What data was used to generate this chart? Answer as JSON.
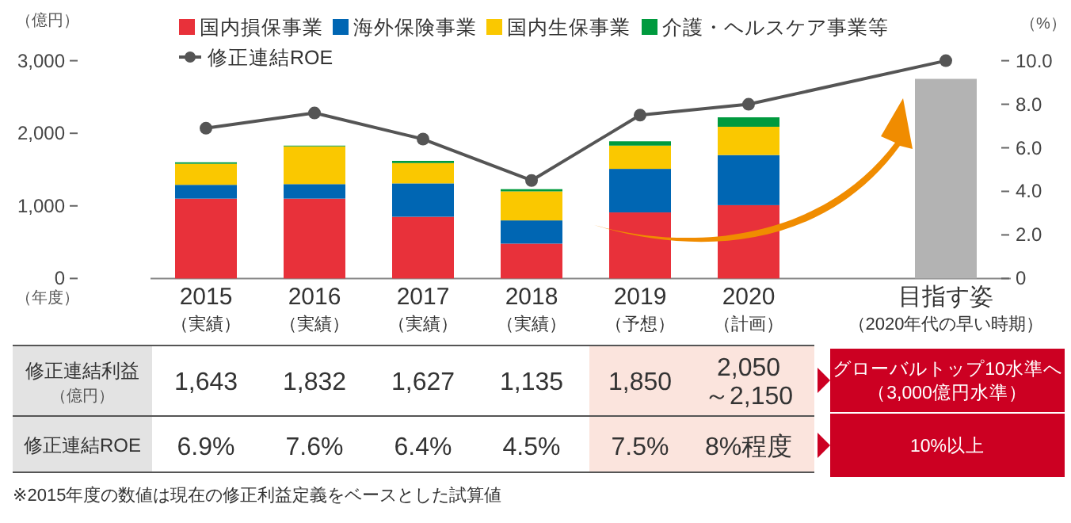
{
  "chart_data": {
    "type": "bar",
    "stacked": true,
    "categories": [
      "2015\n（実績）",
      "2016\n（実績）",
      "2017\n（実績）",
      "2018\n（実績）",
      "2019\n（予想）",
      "2020\n（計画）",
      "目指す姿（2020年代の早い時期）"
    ],
    "series": [
      {
        "name": "国内損保事業",
        "color": "#e8313a",
        "values": [
          1100,
          1100,
          850,
          480,
          910,
          1010,
          null
        ]
      },
      {
        "name": "海外保険事業",
        "color": "#0066b3",
        "values": [
          190,
          200,
          460,
          320,
          600,
          690,
          null
        ]
      },
      {
        "name": "国内生保事業",
        "color": "#fac800",
        "values": [
          290,
          520,
          280,
          400,
          320,
          390,
          null
        ]
      },
      {
        "name": "介護・ヘルスケア事業等",
        "color": "#009a3e",
        "values": [
          20,
          10,
          30,
          30,
          60,
          130,
          null
        ]
      },
      {
        "color": "#b3b3b3",
        "values": [
          null,
          null,
          null,
          null,
          null,
          null,
          2750
        ]
      },
      {
        "name": "修正連結ROE",
        "type": "line",
        "axis": "y2",
        "color": "#555555",
        "values": [
          6.9,
          7.6,
          6.4,
          4.5,
          7.5,
          8,
          10
        ],
        "value_labels": [
          "6.9%",
          "7.6%",
          "6.4%",
          "4.5%",
          "7.5%",
          "8%程度",
          "10%以上"
        ]
      }
    ],
    "ylabel": "（億円）",
    "y2label": "（%）",
    "ylim": [
      0,
      3000
    ],
    "yticks": [
      0,
      {
        "value": 1000,
        "label": "1,000"
      },
      {
        "value": 2000,
        "label": "2,000"
      },
      {
        "value": 3000,
        "label": "3,000"
      }
    ],
    "y2lim": [
      0,
      10
    ],
    "y2ticks": [
      0,
      {
        "value": 2,
        "label": "2.0"
      },
      {
        "value": 4,
        "label": "4.0"
      },
      {
        "value": 6,
        "label": "6.0"
      },
      {
        "value": 8,
        "label": "8.0"
      },
      {
        "value": 10,
        "label": "10.0"
      }
    ],
    "annotations": [
      "（年度）",
      "修正連結利益",
      "（億円）",
      "修正連結ROE",
      "※2015年度の数値は現在の修正利益定義をベースとした試算値",
      "1,643",
      "1,832",
      "1,627",
      "1,135",
      "1,850",
      "2,050\n～2,150",
      "グローバルトップ10水準へ（3,000億円水準）"
    ],
    "legend": "top",
    "marker": "circle"
  }
}
